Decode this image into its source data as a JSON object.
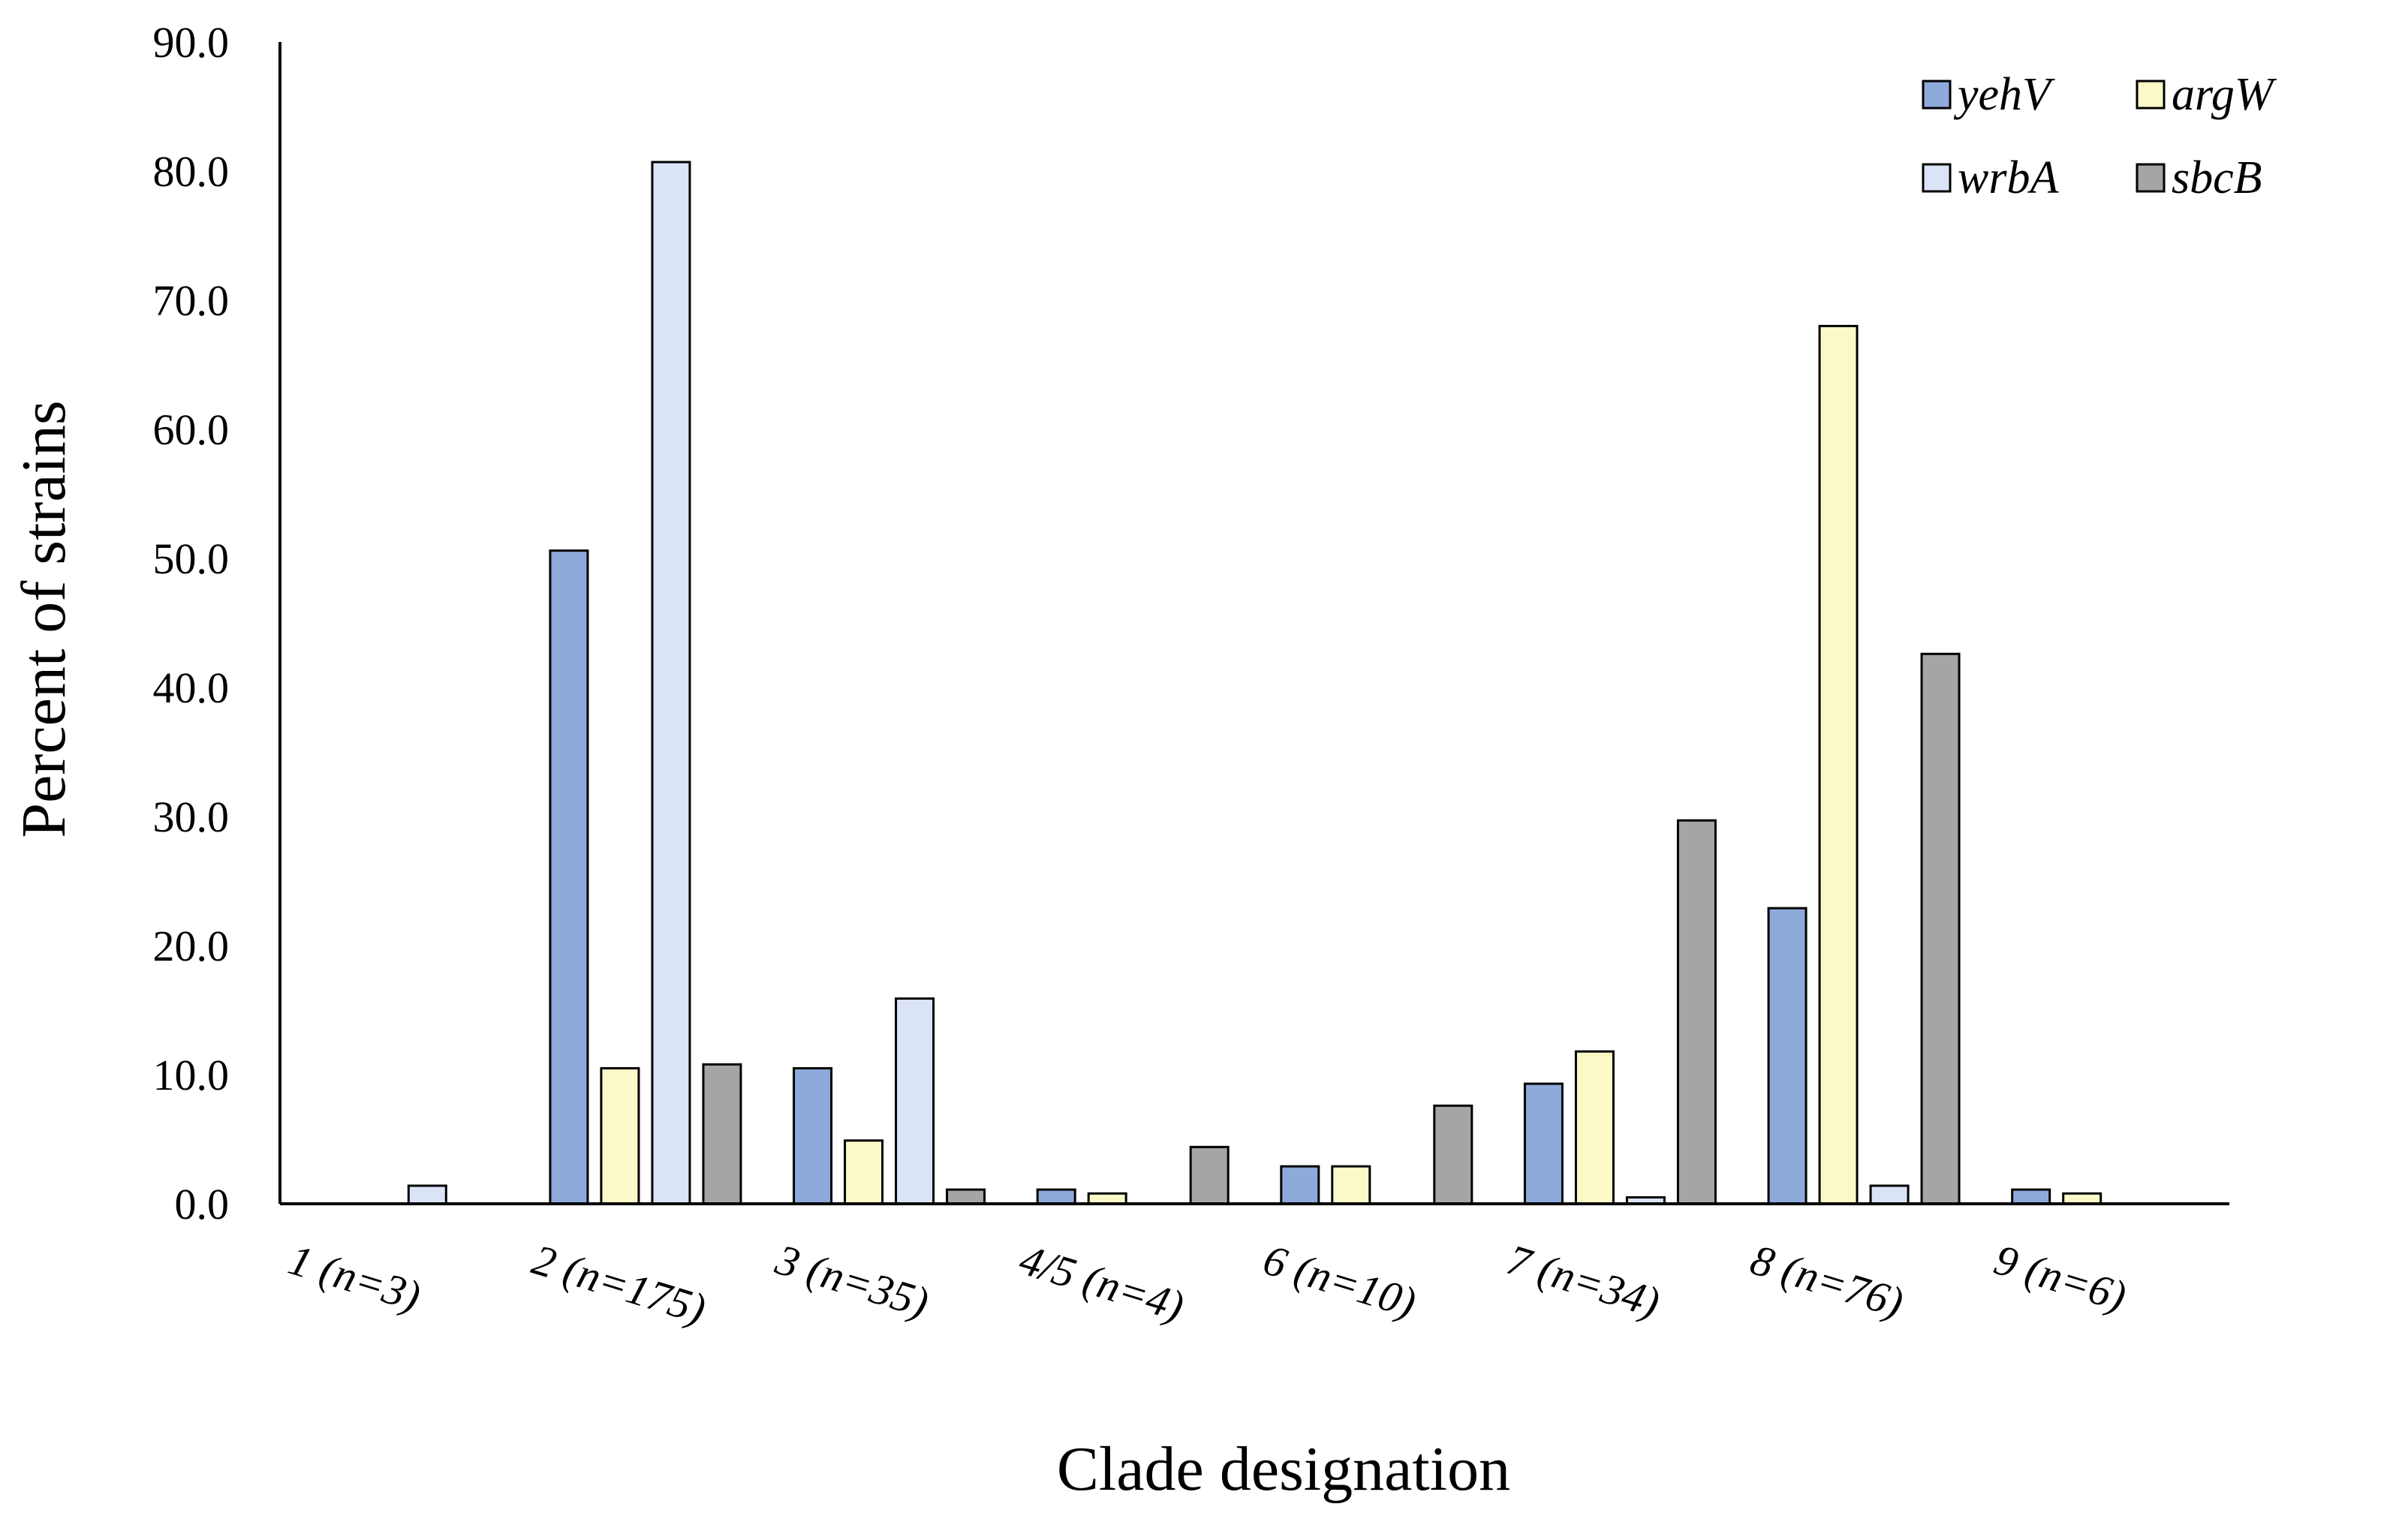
{
  "chart_data": {
    "type": "bar",
    "title": "",
    "xlabel": "Clade designation",
    "ylabel": "Percent of strains",
    "ylim": [
      0,
      90
    ],
    "ytick_step": 10,
    "ytick_labels": [
      "0.0",
      "10.0",
      "20.0",
      "30.0",
      "40.0",
      "50.0",
      "60.0",
      "70.0",
      "80.0",
      "90.0"
    ],
    "grid": false,
    "legend_position": "top-right",
    "categories": [
      "1 (n=3)",
      "2 (n=175)",
      "3 (n=35)",
      "4/5 (n=4)",
      "6 (n=10)",
      "7 (n=34)",
      "8 (n=76)",
      "9 (n=6)"
    ],
    "series": [
      {
        "name": "yehV",
        "color": "#8eaadb",
        "values": [
          0,
          50.6,
          10.5,
          1.1,
          2.9,
          9.3,
          22.9,
          1.1
        ]
      },
      {
        "name": "argW",
        "color": "#fbf9c8",
        "values": [
          0,
          10.5,
          4.9,
          0.8,
          2.9,
          11.8,
          68.0,
          0.8
        ]
      },
      {
        "name": "wrbA",
        "color": "#dbe3f7",
        "values": [
          1.4,
          80.7,
          15.9,
          0,
          0,
          0.5,
          1.4,
          0
        ]
      },
      {
        "name": "sbcB",
        "color": "#a5a5a5",
        "values": [
          0,
          10.8,
          1.1,
          4.4,
          7.6,
          29.7,
          42.6,
          0
        ]
      }
    ]
  }
}
